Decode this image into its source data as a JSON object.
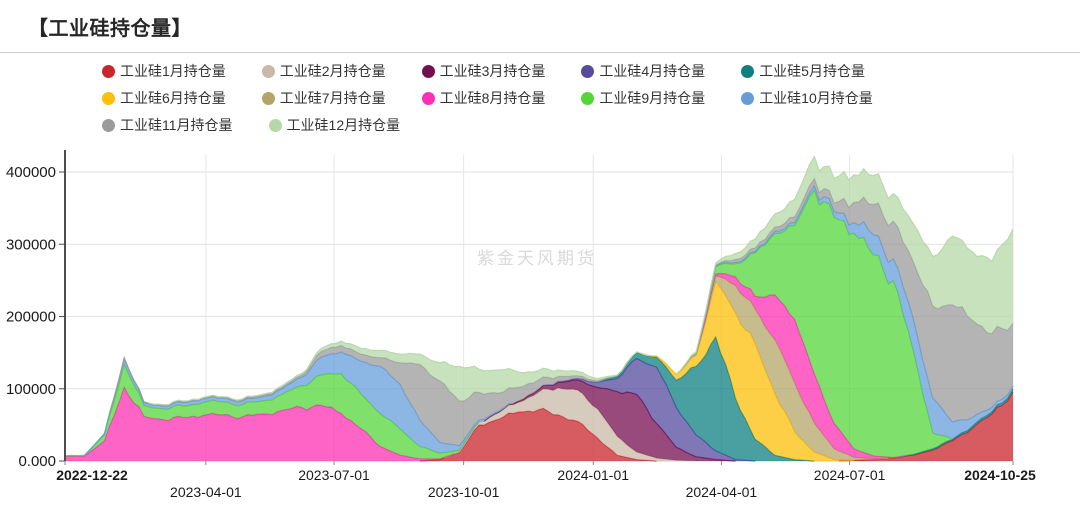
{
  "page": {
    "title": "【工业硅持仓量】",
    "watermark": "紫金天风期货"
  },
  "y_axis": {
    "ticks": [
      {
        "value": 400000,
        "label": "400000"
      },
      {
        "value": 300000,
        "label": "300000"
      },
      {
        "value": 200000,
        "label": "200000"
      },
      {
        "value": 100000,
        "label": "100000"
      },
      {
        "value": 0,
        "label": "0.000"
      }
    ]
  },
  "x_axis": {
    "ticks": [
      {
        "label": "2022-12-22",
        "day": 0,
        "bold": true,
        "row": 0
      },
      {
        "label": "2023-04-01",
        "day": 100,
        "bold": false,
        "row": 1
      },
      {
        "label": "2023-07-01",
        "day": 191,
        "bold": false,
        "row": 0
      },
      {
        "label": "2023-10-01",
        "day": 283,
        "bold": false,
        "row": 1
      },
      {
        "label": "2024-01-01",
        "day": 375,
        "bold": false,
        "row": 0
      },
      {
        "label": "2024-04-01",
        "day": 466,
        "bold": false,
        "row": 1
      },
      {
        "label": "2024-07-01",
        "day": 557,
        "bold": false,
        "row": 0
      },
      {
        "label": "2024-10-25",
        "day": 673,
        "bold": true,
        "row": 0
      }
    ]
  },
  "chart_data": {
    "type": "area",
    "stacked": true,
    "title": "工业硅持仓量",
    "xlabel": "",
    "ylabel": "",
    "ylim": [
      0,
      422000
    ],
    "grid": true,
    "legend_position": "top",
    "start_date": "2022-12-22",
    "end_date": "2024-10-25",
    "total_days": 673,
    "sample_interval_days": 14,
    "dates": [
      "2022-12-22",
      "2023-01-05",
      "2023-01-19",
      "2023-02-02",
      "2023-02-16",
      "2023-03-02",
      "2023-03-16",
      "2023-03-30",
      "2023-04-13",
      "2023-04-27",
      "2023-05-11",
      "2023-05-25",
      "2023-06-08",
      "2023-06-22",
      "2023-07-06",
      "2023-07-20",
      "2023-08-03",
      "2023-08-17",
      "2023-08-31",
      "2023-09-14",
      "2023-09-28",
      "2023-10-12",
      "2023-10-26",
      "2023-11-09",
      "2023-11-23",
      "2023-12-07",
      "2023-12-21",
      "2024-01-04",
      "2024-01-18",
      "2024-02-01",
      "2024-02-15",
      "2024-02-29",
      "2024-03-14",
      "2024-03-28",
      "2024-04-11",
      "2024-04-25",
      "2024-05-09",
      "2024-05-23",
      "2024-06-06",
      "2024-06-20",
      "2024-07-04",
      "2024-07-18",
      "2024-08-01",
      "2024-08-15",
      "2024-08-29",
      "2024-09-12",
      "2024-09-26",
      "2024-10-10",
      "2024-10-25"
    ],
    "series": [
      {
        "name": "工业硅1月持仓量",
        "color": "#c9252c",
        "values": [
          0,
          0,
          0,
          0,
          0,
          0,
          0,
          0,
          0,
          0,
          0,
          0,
          0,
          0,
          0,
          0,
          0,
          0,
          0,
          2000,
          12000,
          50000,
          58000,
          68000,
          71000,
          64000,
          55000,
          32000,
          8000,
          2000,
          0,
          0,
          0,
          0,
          0,
          0,
          0,
          0,
          0,
          0,
          1000,
          2000,
          4000,
          8000,
          15000,
          28000,
          45000,
          65000,
          95000
        ]
      },
      {
        "name": "工业硅2月持仓量",
        "color": "#c8b9a6",
        "values": [
          0,
          0,
          0,
          0,
          0,
          0,
          0,
          0,
          0,
          0,
          0,
          0,
          0,
          0,
          0,
          0,
          0,
          0,
          0,
          0,
          1000,
          4000,
          9000,
          13000,
          24000,
          37000,
          43000,
          40000,
          26000,
          10000,
          4000,
          1000,
          0,
          0,
          0,
          0,
          0,
          0,
          0,
          0,
          0,
          0,
          0,
          0,
          0,
          0,
          0,
          0,
          0
        ]
      },
      {
        "name": "工业硅3月持仓量",
        "color": "#740e4f",
        "values": [
          0,
          0,
          0,
          0,
          0,
          0,
          0,
          0,
          0,
          0,
          0,
          0,
          0,
          0,
          0,
          0,
          0,
          0,
          0,
          0,
          0,
          0,
          1000,
          2000,
          4000,
          8000,
          14000,
          30000,
          62000,
          80000,
          48000,
          18000,
          6000,
          2000,
          0,
          0,
          0,
          0,
          0,
          0,
          0,
          0,
          0,
          0,
          0,
          0,
          0,
          0,
          0
        ]
      },
      {
        "name": "工业硅4月持仓量",
        "color": "#564b9d",
        "values": [
          0,
          0,
          0,
          0,
          0,
          0,
          0,
          0,
          0,
          0,
          0,
          0,
          0,
          0,
          0,
          0,
          0,
          0,
          0,
          0,
          0,
          0,
          0,
          0,
          0,
          1000,
          2000,
          7000,
          18000,
          50000,
          78000,
          55000,
          30000,
          12000,
          2000,
          0,
          0,
          0,
          0,
          0,
          0,
          0,
          0,
          0,
          0,
          0,
          0,
          0,
          0
        ]
      },
      {
        "name": "工业硅5月持仓量",
        "color": "#0e7f80",
        "values": [
          0,
          0,
          0,
          0,
          0,
          0,
          0,
          0,
          0,
          0,
          0,
          0,
          0,
          0,
          0,
          0,
          0,
          0,
          0,
          0,
          0,
          0,
          0,
          0,
          0,
          0,
          0,
          0,
          3000,
          8000,
          14000,
          38000,
          95000,
          158000,
          85000,
          30000,
          8000,
          2000,
          0,
          0,
          0,
          0,
          0,
          1000,
          2000,
          2000,
          3000,
          3000,
          4000
        ]
      },
      {
        "name": "工业硅6月持仓量",
        "color": "#fcbf0a",
        "values": [
          0,
          0,
          0,
          0,
          0,
          0,
          0,
          0,
          0,
          0,
          0,
          0,
          0,
          0,
          0,
          0,
          0,
          0,
          0,
          0,
          0,
          0,
          0,
          0,
          0,
          0,
          0,
          0,
          0,
          0,
          1000,
          8000,
          15000,
          76000,
          118000,
          132000,
          85000,
          38000,
          12000,
          2000,
          0,
          0,
          0,
          0,
          0,
          0,
          0,
          0,
          0
        ]
      },
      {
        "name": "工业硅7月持仓量",
        "color": "#b3a568",
        "values": [
          0,
          0,
          0,
          0,
          0,
          0,
          0,
          0,
          0,
          0,
          0,
          0,
          0,
          0,
          0,
          0,
          0,
          0,
          0,
          0,
          0,
          0,
          0,
          0,
          0,
          0,
          0,
          0,
          0,
          0,
          0,
          0,
          2000,
          8000,
          38000,
          48000,
          75000,
          68000,
          40000,
          15000,
          4000,
          1000,
          0,
          0,
          0,
          0,
          0,
          0,
          0
        ]
      },
      {
        "name": "工业硅8月持仓量",
        "color": "#fd2fb3",
        "values": [
          6000,
          7000,
          28000,
          102000,
          62000,
          57000,
          60000,
          63000,
          64000,
          61000,
          65000,
          70000,
          74000,
          77000,
          66000,
          45000,
          20000,
          8000,
          3000,
          1000,
          0,
          0,
          0,
          0,
          0,
          0,
          0,
          0,
          0,
          0,
          0,
          0,
          0,
          3000,
          12000,
          18000,
          62000,
          88000,
          68000,
          35000,
          12000,
          4000,
          1000,
          0,
          0,
          0,
          0,
          0,
          0
        ]
      },
      {
        "name": "工业硅9月持仓量",
        "color": "#56d53b",
        "values": [
          1000,
          1000,
          8000,
          32000,
          15000,
          15000,
          16000,
          18000,
          18000,
          17000,
          18000,
          22000,
          30000,
          42000,
          55000,
          48000,
          45000,
          36000,
          17000,
          8000,
          2000,
          0,
          0,
          0,
          0,
          0,
          0,
          0,
          0,
          0,
          0,
          0,
          0,
          10000,
          18000,
          60000,
          85000,
          130000,
          255000,
          285000,
          298000,
          278000,
          245000,
          145000,
          22000,
          0,
          0,
          0,
          0
        ]
      },
      {
        "name": "工业硅10月持仓量",
        "color": "#669dd9",
        "values": [
          0,
          0,
          2000,
          8000,
          4000,
          4000,
          5000,
          5000,
          5000,
          5000,
          6000,
          8000,
          12000,
          25000,
          30000,
          45000,
          66000,
          62000,
          36000,
          15000,
          6000,
          3000,
          1000,
          0,
          0,
          0,
          0,
          0,
          0,
          0,
          0,
          0,
          0,
          1000,
          2000,
          2000,
          3000,
          4000,
          6000,
          8000,
          15000,
          28000,
          30000,
          45000,
          48000,
          24000,
          12000,
          6000,
          4000
        ]
      },
      {
        "name": "工业硅11月持仓量",
        "color": "#9b9b9b",
        "values": [
          0,
          0,
          0,
          1000,
          1000,
          1000,
          1000,
          1000,
          1000,
          2000,
          2000,
          2000,
          3000,
          8000,
          9000,
          10000,
          12000,
          30000,
          78000,
          85000,
          62000,
          38000,
          25000,
          19000,
          13000,
          7000,
          4000,
          2000,
          1000,
          0,
          0,
          0,
          1000,
          1000,
          4000,
          5000,
          6000,
          8000,
          10000,
          12000,
          28000,
          42000,
          52000,
          78000,
          128000,
          162000,
          135000,
          102000,
          88000
        ]
      },
      {
        "name": "工业硅12月持仓量",
        "color": "#b5d8a8",
        "values": [
          0,
          0,
          0,
          0,
          0,
          1000,
          1000,
          1000,
          1000,
          1000,
          1000,
          2000,
          2000,
          4000,
          6000,
          8000,
          10000,
          12000,
          14000,
          25000,
          48000,
          32000,
          32000,
          21000,
          13000,
          9000,
          6000,
          3000,
          1000,
          1000,
          0,
          0,
          2000,
          3000,
          8000,
          12000,
          18000,
          24000,
          30000,
          34000,
          38000,
          40000,
          38000,
          52000,
          68000,
          95000,
          95000,
          100000,
          135000
        ]
      }
    ]
  }
}
